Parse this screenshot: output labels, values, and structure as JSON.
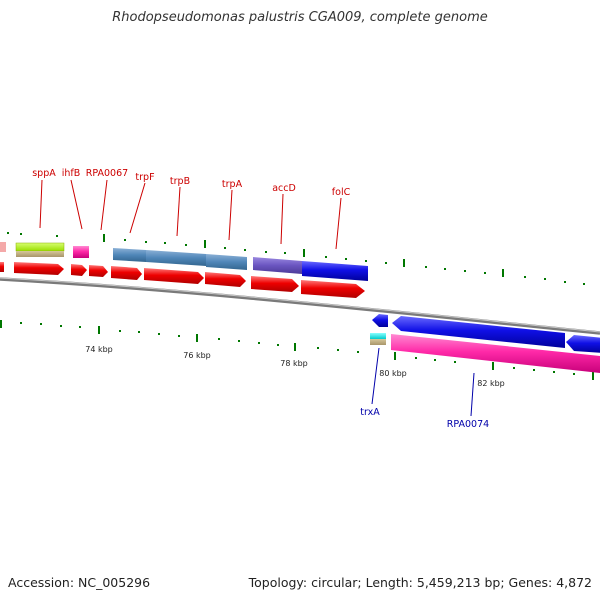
{
  "title": "Rhodopseudomonas palustris CGA009, complete genome",
  "accession_text": "Accession: NC_005296",
  "summary_text": "Topology: circular; Length: 5,459,213 bp; Genes: 4,872",
  "ruler": {
    "labels": [
      "74 kbp",
      "76 kbp",
      "78 kbp",
      "80 kbp",
      "82 kbp"
    ]
  },
  "genes": {
    "top_labels": [
      "sppA",
      "ihfB",
      "RPA0067",
      "trpF",
      "trpB",
      "trpA",
      "accD",
      "folC"
    ],
    "bottom_labels": [
      "trxA",
      "RPA0074"
    ]
  },
  "colors": {
    "top_label": "#cc0000",
    "bottom_label": "#0000aa",
    "backbone": "#888888",
    "tick": "#007700",
    "cds_forward": "#ff0000",
    "cds_reverse": "#0000ee"
  }
}
